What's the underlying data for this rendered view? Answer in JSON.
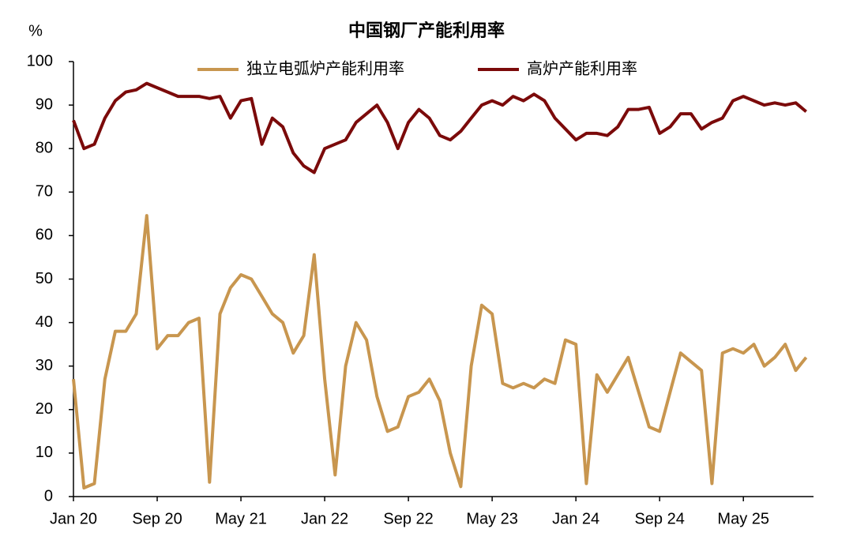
{
  "chart_data": {
    "type": "line",
    "title": "中国钢厂产能利用率",
    "y_label": "%",
    "categories": [
      "Jan 20",
      null,
      null,
      null,
      null,
      null,
      null,
      null,
      "Sep 20",
      null,
      null,
      null,
      null,
      null,
      null,
      null,
      "May 21",
      null,
      null,
      null,
      null,
      null,
      null,
      null,
      "Jan 22",
      null,
      null,
      null,
      null,
      null,
      null,
      null,
      "Sep 22",
      null,
      null,
      null,
      null,
      null,
      null,
      null,
      "May 23",
      null,
      null,
      null,
      null,
      null,
      null,
      null,
      "Jan 24",
      null,
      null,
      null,
      null,
      null,
      null,
      null,
      "Sep 24",
      null,
      null,
      null,
      null,
      null,
      null,
      null,
      "May 25",
      null,
      null,
      null,
      null,
      null,
      null
    ],
    "series": [
      {
        "name": "独立电弧炉产能利用率",
        "color": "#c8964f",
        "values": [
          27,
          2,
          3,
          27,
          38,
          38,
          42,
          64.6,
          34,
          37,
          37,
          40,
          41,
          3.3,
          42,
          48,
          51,
          50,
          46,
          42,
          40,
          33,
          37,
          55.6,
          27,
          5,
          30,
          40,
          36,
          23,
          15,
          16,
          23,
          24,
          27,
          22,
          10,
          2.3,
          30,
          44,
          42,
          26,
          25,
          26,
          25,
          27,
          26,
          36,
          35,
          3,
          28,
          24,
          28,
          32,
          24,
          16,
          15,
          24,
          33,
          31,
          29,
          3,
          33,
          34,
          33,
          35,
          30,
          32,
          35,
          29,
          32
        ]
      },
      {
        "name": "高炉产能利用率",
        "color": "#7b0a0a",
        "values": [
          86.5,
          80,
          81,
          87,
          91,
          93,
          93.5,
          95,
          94,
          93,
          92,
          92,
          92,
          91.5,
          92,
          87,
          91,
          91.5,
          81,
          87,
          85,
          79,
          76,
          74.5,
          80,
          81,
          82,
          86,
          88,
          90,
          86,
          80,
          86,
          89,
          87,
          83,
          82,
          84,
          87,
          90,
          91,
          90,
          92,
          91,
          92.5,
          91,
          87,
          84.5,
          82,
          83.5,
          83.5,
          83,
          85,
          89,
          89,
          89.5,
          83.5,
          85,
          88,
          88,
          84.5,
          86,
          87,
          91,
          92,
          91,
          90,
          90.5,
          90,
          90.5,
          88.5
        ]
      }
    ],
    "ylim": [
      0,
      100
    ],
    "yticks": [
      0,
      10,
      20,
      30,
      40,
      50,
      60,
      70,
      80,
      90,
      100
    ],
    "grid": false,
    "legend": "top"
  }
}
